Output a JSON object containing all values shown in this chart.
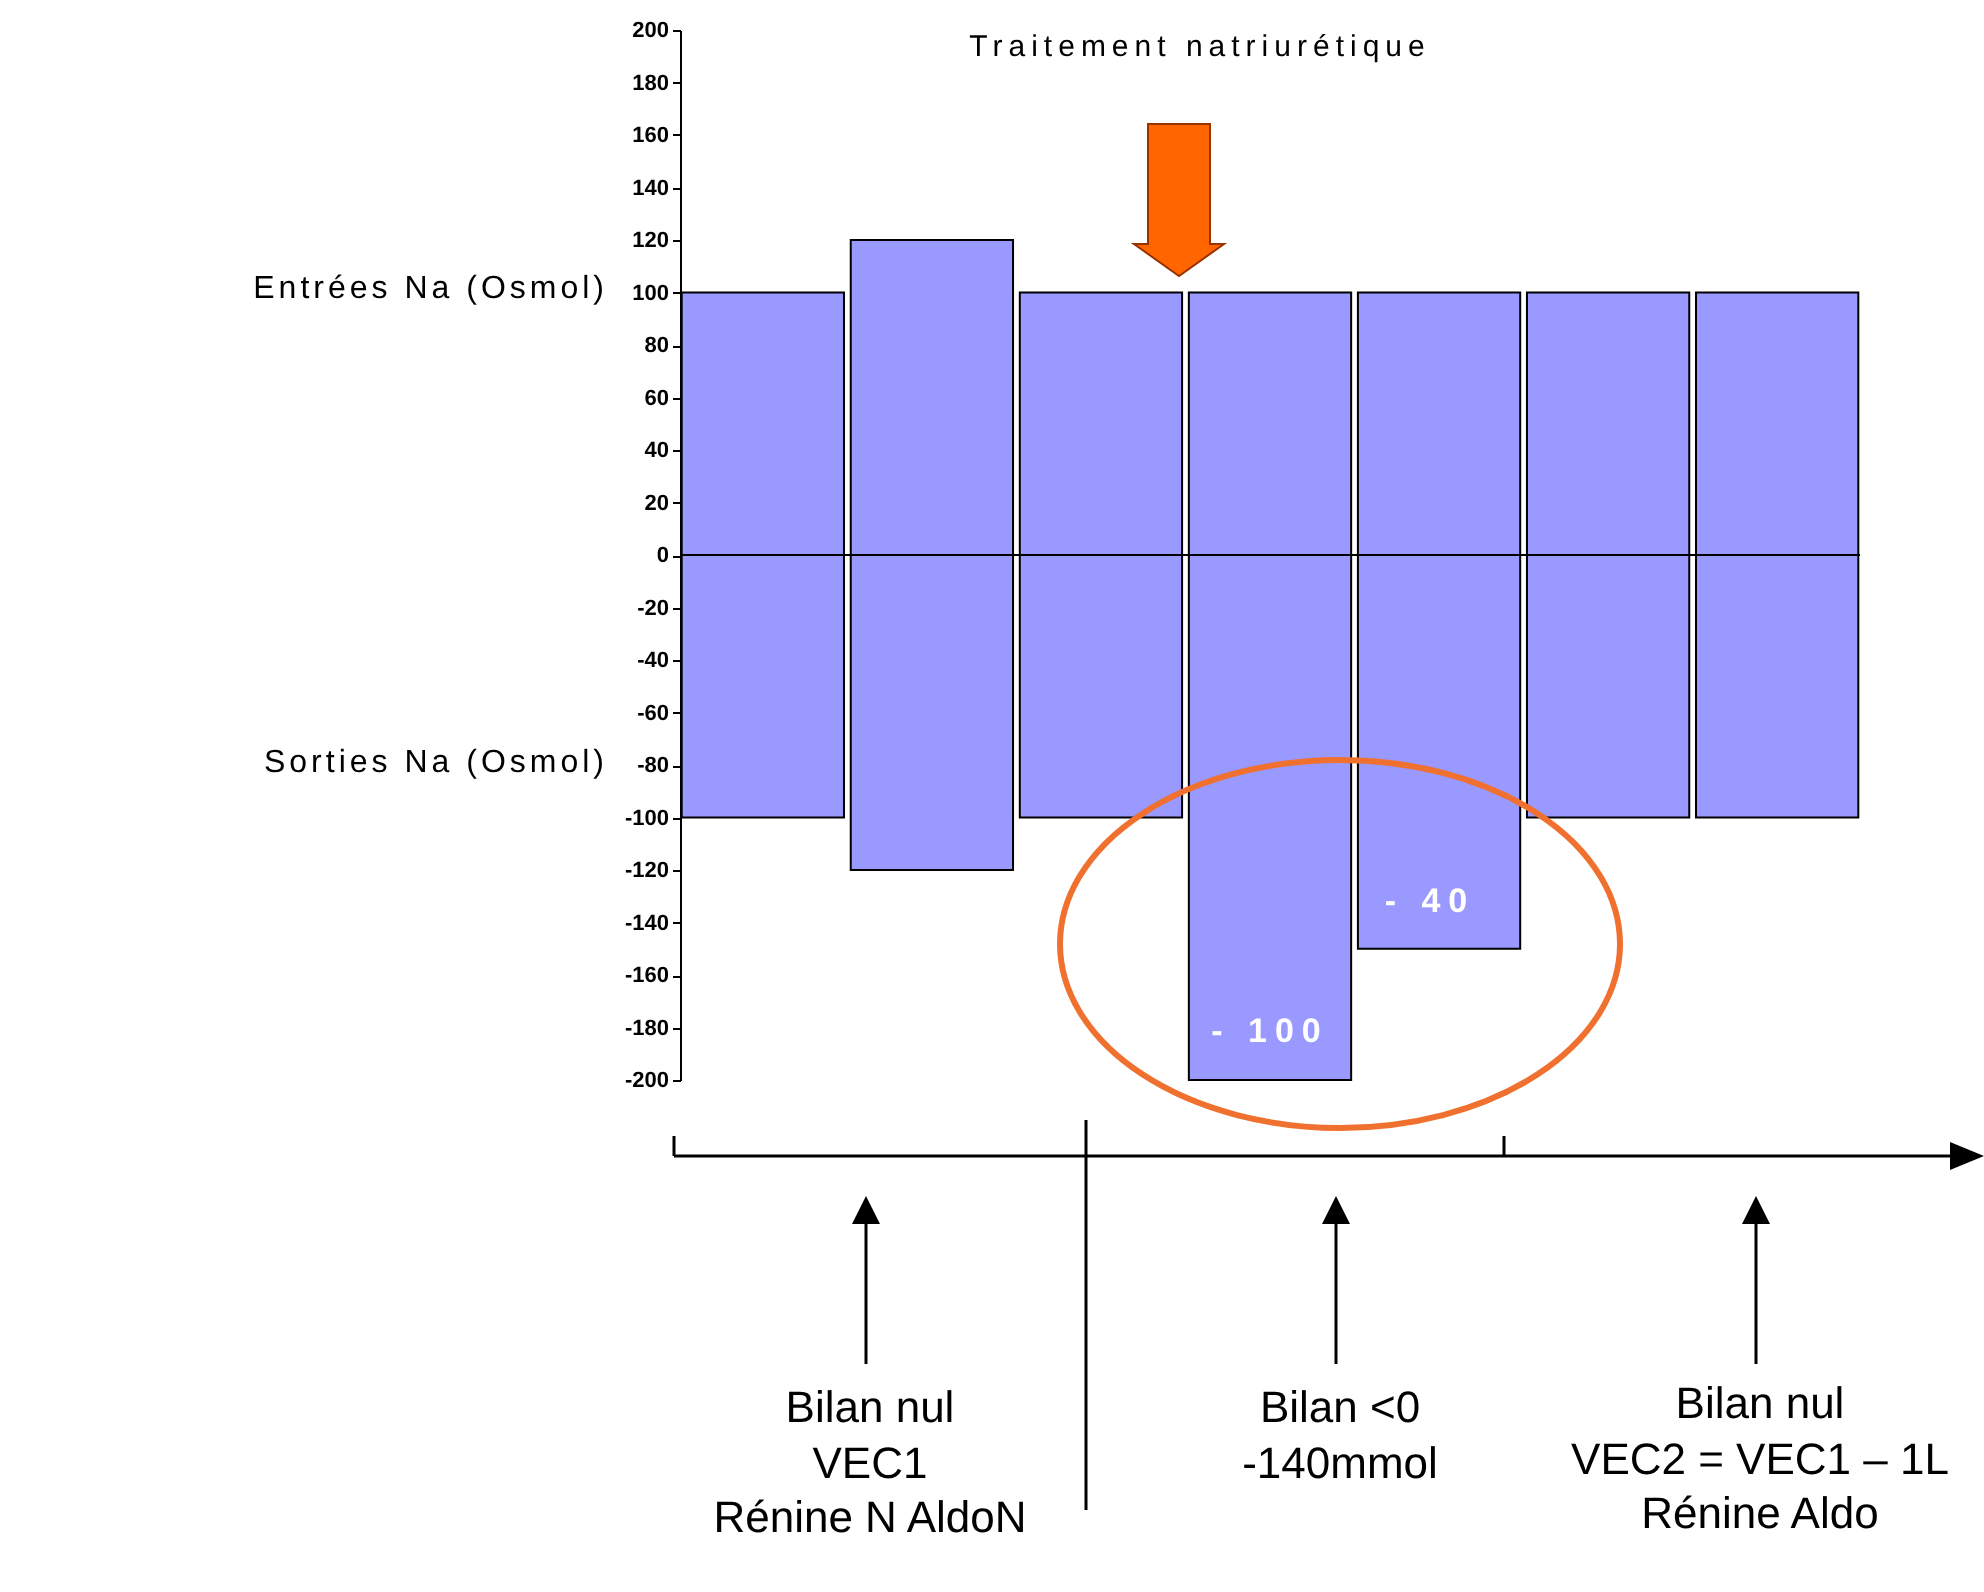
{
  "chart_data": {
    "type": "bar",
    "stacked": true,
    "categories": [
      null,
      null,
      null,
      null,
      null,
      null,
      null
    ],
    "series": [
      {
        "name": "Entrées Na (Osmol)",
        "color": "#9999ff",
        "values": [
          100,
          120,
          100,
          100,
          100,
          100,
          100
        ]
      },
      {
        "name": "Sorties Na (Osmol)",
        "color": "#9999ff",
        "values": [
          -100,
          -120,
          -100,
          -200,
          -150,
          -100,
          -100
        ]
      }
    ],
    "ylim": [
      -200,
      200
    ],
    "yticks": [
      -200,
      -180,
      -160,
      -140,
      -120,
      -100,
      -80,
      -60,
      -40,
      -20,
      0,
      20,
      40,
      60,
      80,
      100,
      120,
      140,
      160,
      180,
      200
    ],
    "grid": false,
    "legend": false,
    "tick_labels": "y",
    "ref_lines": [
      {
        "axis": "y",
        "value": 0,
        "color": "#000000"
      }
    ],
    "annotations": [
      "Traitement natriurétique",
      "- 100",
      "- 40",
      "Bilan nul\nVEC1\nRénine N AldoN",
      "Bilan <0\n-140mmol",
      "Bilan nul\nVEC2 = VEC1 – 1L\nRénine    Aldo"
    ]
  }
}
